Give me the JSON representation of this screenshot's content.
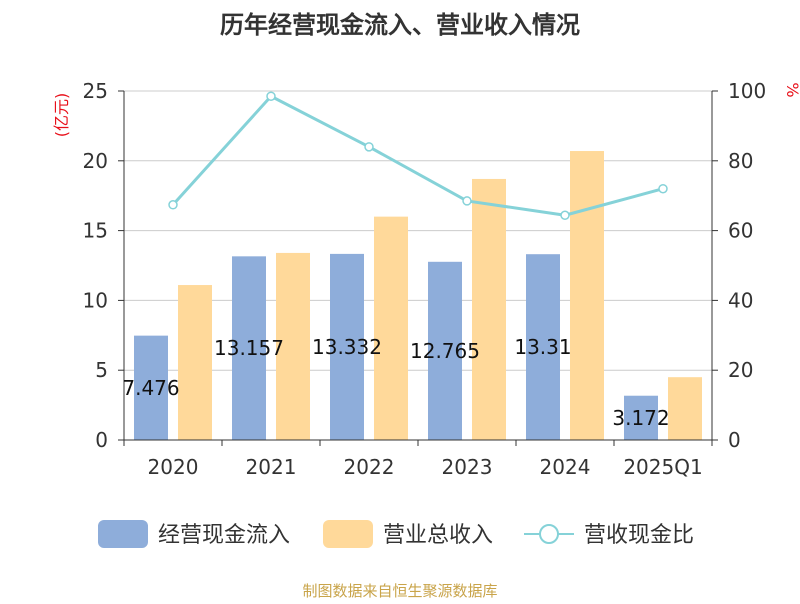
{
  "chart_data": {
    "type": "bar",
    "title": "历年经营现金流入、营业收入情况",
    "categories": [
      "2020",
      "2021",
      "2022",
      "2023",
      "2024",
      "2025Q1"
    ],
    "series": [
      {
        "name": "经营现金流入",
        "type": "bar",
        "axis": "left",
        "color": "#8eadda",
        "values": [
          7.476,
          13.157,
          13.332,
          12.765,
          13.31,
          3.172
        ],
        "labels": [
          "7.476",
          "13.157",
          "13.332",
          "12.765",
          "13.31",
          "3.172"
        ]
      },
      {
        "name": "营业总收入",
        "type": "bar",
        "axis": "left",
        "color": "#ffd99a",
        "values": [
          11.1,
          13.4,
          16.0,
          18.7,
          20.7,
          4.5
        ]
      },
      {
        "name": "营收现金比",
        "type": "line",
        "axis": "right",
        "color": "#85d2d8",
        "values": [
          67.4,
          98.5,
          84.0,
          68.5,
          64.4,
          72.0
        ]
      }
    ],
    "y_left": {
      "label": "(亿元)",
      "ylim": [
        0,
        25
      ],
      "ticks": [
        "0",
        "5",
        "10",
        "15",
        "20",
        "25"
      ]
    },
    "y_right": {
      "label": "%",
      "ylim": [
        0,
        100
      ],
      "ticks": [
        "0",
        "20",
        "40",
        "60",
        "80",
        "100"
      ]
    },
    "grid": true,
    "legend_position": "bottom",
    "axis_label_color": "#e8101a"
  },
  "source": "制图数据来自恒生聚源数据库"
}
